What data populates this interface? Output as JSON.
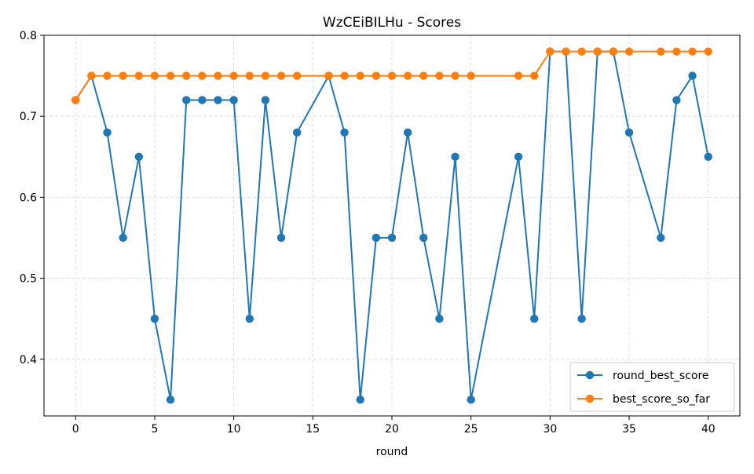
{
  "chart_data": {
    "type": "line",
    "title": "WzCEiBILHu - Scores",
    "xlabel": "round",
    "ylabel": "",
    "xlim": [
      -2,
      42
    ],
    "ylim": [
      0.33,
      0.8
    ],
    "xticks": [
      0,
      5,
      10,
      15,
      20,
      25,
      30,
      35,
      40
    ],
    "yticks": [
      0.4,
      0.5,
      0.6,
      0.7,
      0.8
    ],
    "xtick_labels": [
      "0",
      "5",
      "10",
      "15",
      "20",
      "25",
      "30",
      "35",
      "40"
    ],
    "ytick_labels": [
      "0.4",
      "0.5",
      "0.6",
      "0.7",
      "0.8"
    ],
    "grid": true,
    "legend_position": "bottom-right",
    "series": [
      {
        "name": "round_best_score",
        "color": "#1f77b4",
        "marker": "circle",
        "x": [
          0,
          1,
          2,
          3,
          4,
          5,
          6,
          7,
          8,
          9,
          10,
          11,
          12,
          13,
          14,
          16,
          17,
          18,
          19,
          20,
          21,
          22,
          23,
          24,
          25,
          28,
          29,
          30,
          31,
          32,
          33,
          34,
          35,
          37,
          38,
          39,
          40
        ],
        "y": [
          0.72,
          0.75,
          0.68,
          0.55,
          0.65,
          0.45,
          0.35,
          0.72,
          0.72,
          0.72,
          0.72,
          0.45,
          0.72,
          0.55,
          0.68,
          0.75,
          0.68,
          0.35,
          0.55,
          0.55,
          0.68,
          0.55,
          0.45,
          0.65,
          0.35,
          0.65,
          0.45,
          0.78,
          0.78,
          0.45,
          0.78,
          0.78,
          0.68,
          0.55,
          0.72,
          0.75,
          0.65
        ]
      },
      {
        "name": "best_score_so_far",
        "color": "#ff7f0e",
        "marker": "circle",
        "x": [
          0,
          1,
          2,
          3,
          4,
          5,
          6,
          7,
          8,
          9,
          10,
          11,
          12,
          13,
          14,
          16,
          17,
          18,
          19,
          20,
          21,
          22,
          23,
          24,
          25,
          28,
          29,
          30,
          31,
          32,
          33,
          34,
          35,
          37,
          38,
          39,
          40
        ],
        "y": [
          0.72,
          0.75,
          0.75,
          0.75,
          0.75,
          0.75,
          0.75,
          0.75,
          0.75,
          0.75,
          0.75,
          0.75,
          0.75,
          0.75,
          0.75,
          0.75,
          0.75,
          0.75,
          0.75,
          0.75,
          0.75,
          0.75,
          0.75,
          0.75,
          0.75,
          0.75,
          0.75,
          0.78,
          0.78,
          0.78,
          0.78,
          0.78,
          0.78,
          0.78,
          0.78,
          0.78,
          0.78
        ]
      }
    ]
  }
}
